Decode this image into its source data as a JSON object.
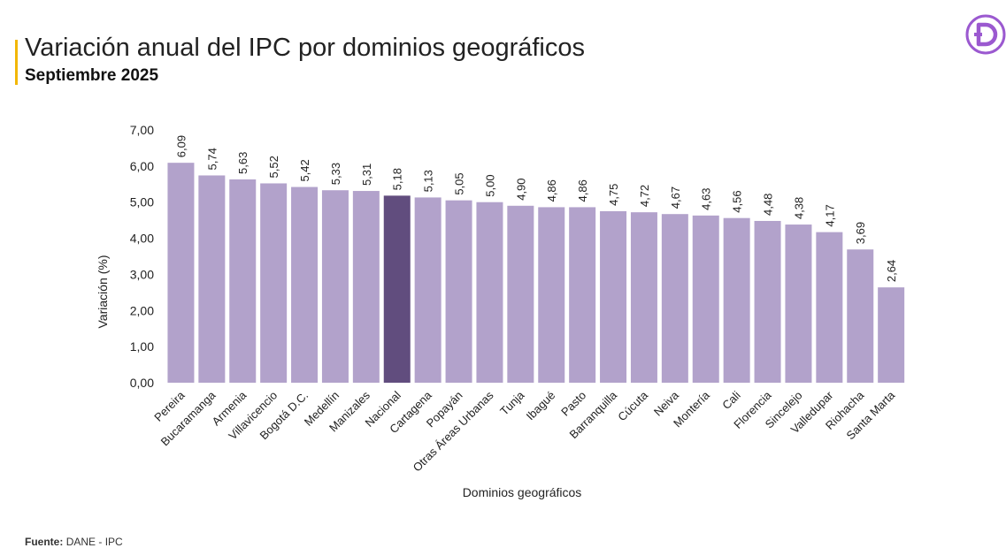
{
  "header": {
    "title": "Variación anual del IPC por dominios geográficos",
    "subtitle": "Septiembre 2025"
  },
  "footer": {
    "source_label": "Fuente:",
    "source_text": "DANE - IPC"
  },
  "colors": {
    "accent": "#f2b705",
    "bar": "#b2a2cb",
    "highlight_bar": "#614d7e",
    "logo": "#9b59d0"
  },
  "logo_icon": "dane-d-logo-icon",
  "chart_data": {
    "type": "bar",
    "title": "",
    "xlabel": "Dominios geográficos",
    "ylabel": "Variación (%)",
    "ylim": [
      0,
      7
    ],
    "yticks": [
      "0,00",
      "1,00",
      "2,00",
      "3,00",
      "4,00",
      "5,00",
      "6,00",
      "7,00"
    ],
    "grid": false,
    "highlight_category": "Nacional",
    "categories": [
      "Pereira",
      "Bucaramanga",
      "Armenia",
      "Villavicencio",
      "Bogotá D.C.",
      "Medellín",
      "Manizales",
      "Nacional",
      "Cartagena",
      "Popayán",
      "Otras Áreas Urbanas",
      "Tunja",
      "Ibagué",
      "Pasto",
      "Barranquilla",
      "Cúcuta",
      "Neiva",
      "Montería",
      "Cali",
      "Florencia",
      "Sincelejo",
      "Valledupar",
      "Riohacha",
      "Santa Marta"
    ],
    "values": [
      6.09,
      5.74,
      5.63,
      5.52,
      5.42,
      5.33,
      5.31,
      5.18,
      5.13,
      5.05,
      5.0,
      4.9,
      4.86,
      4.86,
      4.75,
      4.72,
      4.67,
      4.63,
      4.56,
      4.48,
      4.38,
      4.17,
      3.69,
      2.64
    ],
    "value_labels": [
      "6,09",
      "5,74",
      "5,63",
      "5,52",
      "5,42",
      "5,33",
      "5,31",
      "5,18",
      "5,13",
      "5,05",
      "5,00",
      "4,90",
      "4,86",
      "4,86",
      "4,75",
      "4,72",
      "4,67",
      "4,63",
      "4,56",
      "4,48",
      "4,38",
      "4,17",
      "3,69",
      "2,64"
    ]
  }
}
